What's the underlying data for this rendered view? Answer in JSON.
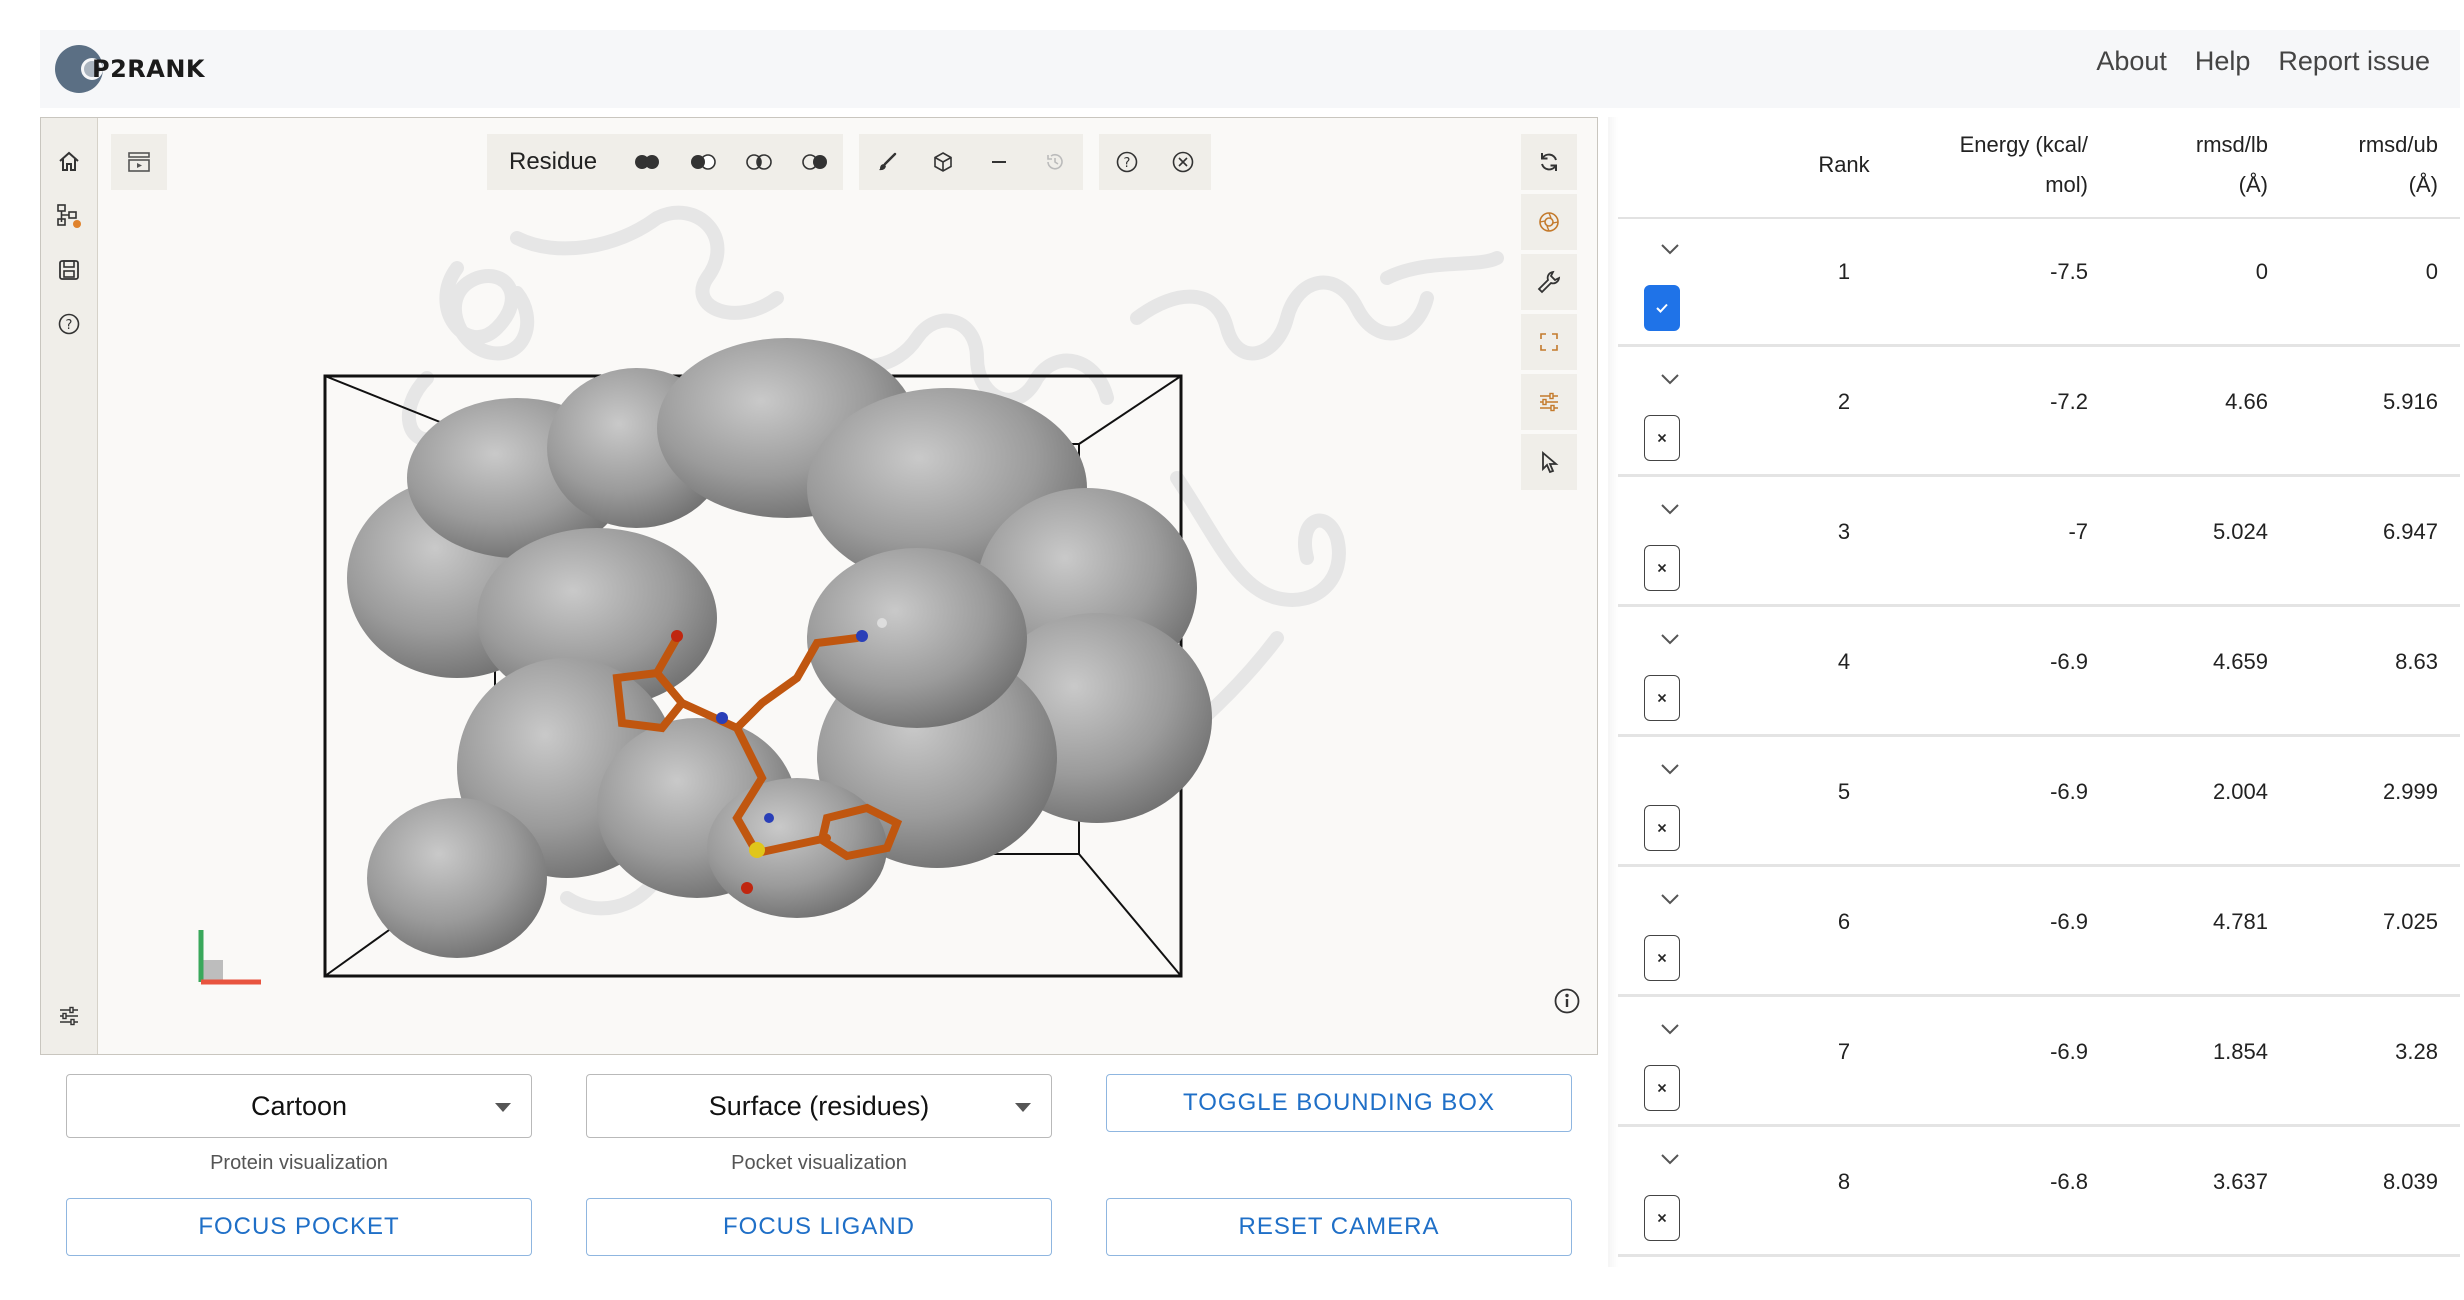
{
  "header": {
    "logo_text": "P2RANK",
    "nav": [
      "About",
      "Help",
      "Report issue"
    ]
  },
  "viewer": {
    "toolbar_label": "Residue",
    "colors": {
      "bg": "#faf9f7",
      "panel": "#f0eee9",
      "ligand": "#c0560f",
      "surface": "#8e8e8e",
      "accent": "#c47a2c"
    }
  },
  "controls": {
    "protein_select": {
      "value": "Cartoon",
      "label": "Protein visualization"
    },
    "pocket_select": {
      "value": "Surface (residues)",
      "label": "Pocket visualization"
    },
    "toggle_bbox": "TOGGLE BOUNDING BOX",
    "focus_pocket": "FOCUS POCKET",
    "focus_ligand": "FOCUS LIGAND",
    "reset_camera": "RESET CAMERA"
  },
  "table": {
    "headers": {
      "rank": "Rank",
      "energy_line1": "Energy (kcal/",
      "energy_line2": "mol)",
      "rmsd_lb_line1": "rmsd/lb",
      "rmsd_lb_line2": "(Å)",
      "rmsd_ub_line1": "rmsd/ub",
      "rmsd_ub_line2": "(Å)"
    },
    "rows": [
      {
        "rank": "1",
        "energy": "-7.5",
        "rmsd_lb": "0",
        "rmsd_ub": "0",
        "checked": true
      },
      {
        "rank": "2",
        "energy": "-7.2",
        "rmsd_lb": "4.66",
        "rmsd_ub": "5.916",
        "checked": false
      },
      {
        "rank": "3",
        "energy": "-7",
        "rmsd_lb": "5.024",
        "rmsd_ub": "6.947",
        "checked": false
      },
      {
        "rank": "4",
        "energy": "-6.9",
        "rmsd_lb": "4.659",
        "rmsd_ub": "8.63",
        "checked": false
      },
      {
        "rank": "5",
        "energy": "-6.9",
        "rmsd_lb": "2.004",
        "rmsd_ub": "2.999",
        "checked": false
      },
      {
        "rank": "6",
        "energy": "-6.9",
        "rmsd_lb": "4.781",
        "rmsd_ub": "7.025",
        "checked": false
      },
      {
        "rank": "7",
        "energy": "-6.9",
        "rmsd_lb": "1.854",
        "rmsd_ub": "3.28",
        "checked": false
      },
      {
        "rank": "8",
        "energy": "-6.8",
        "rmsd_lb": "3.637",
        "rmsd_ub": "8.039",
        "checked": false
      }
    ]
  }
}
